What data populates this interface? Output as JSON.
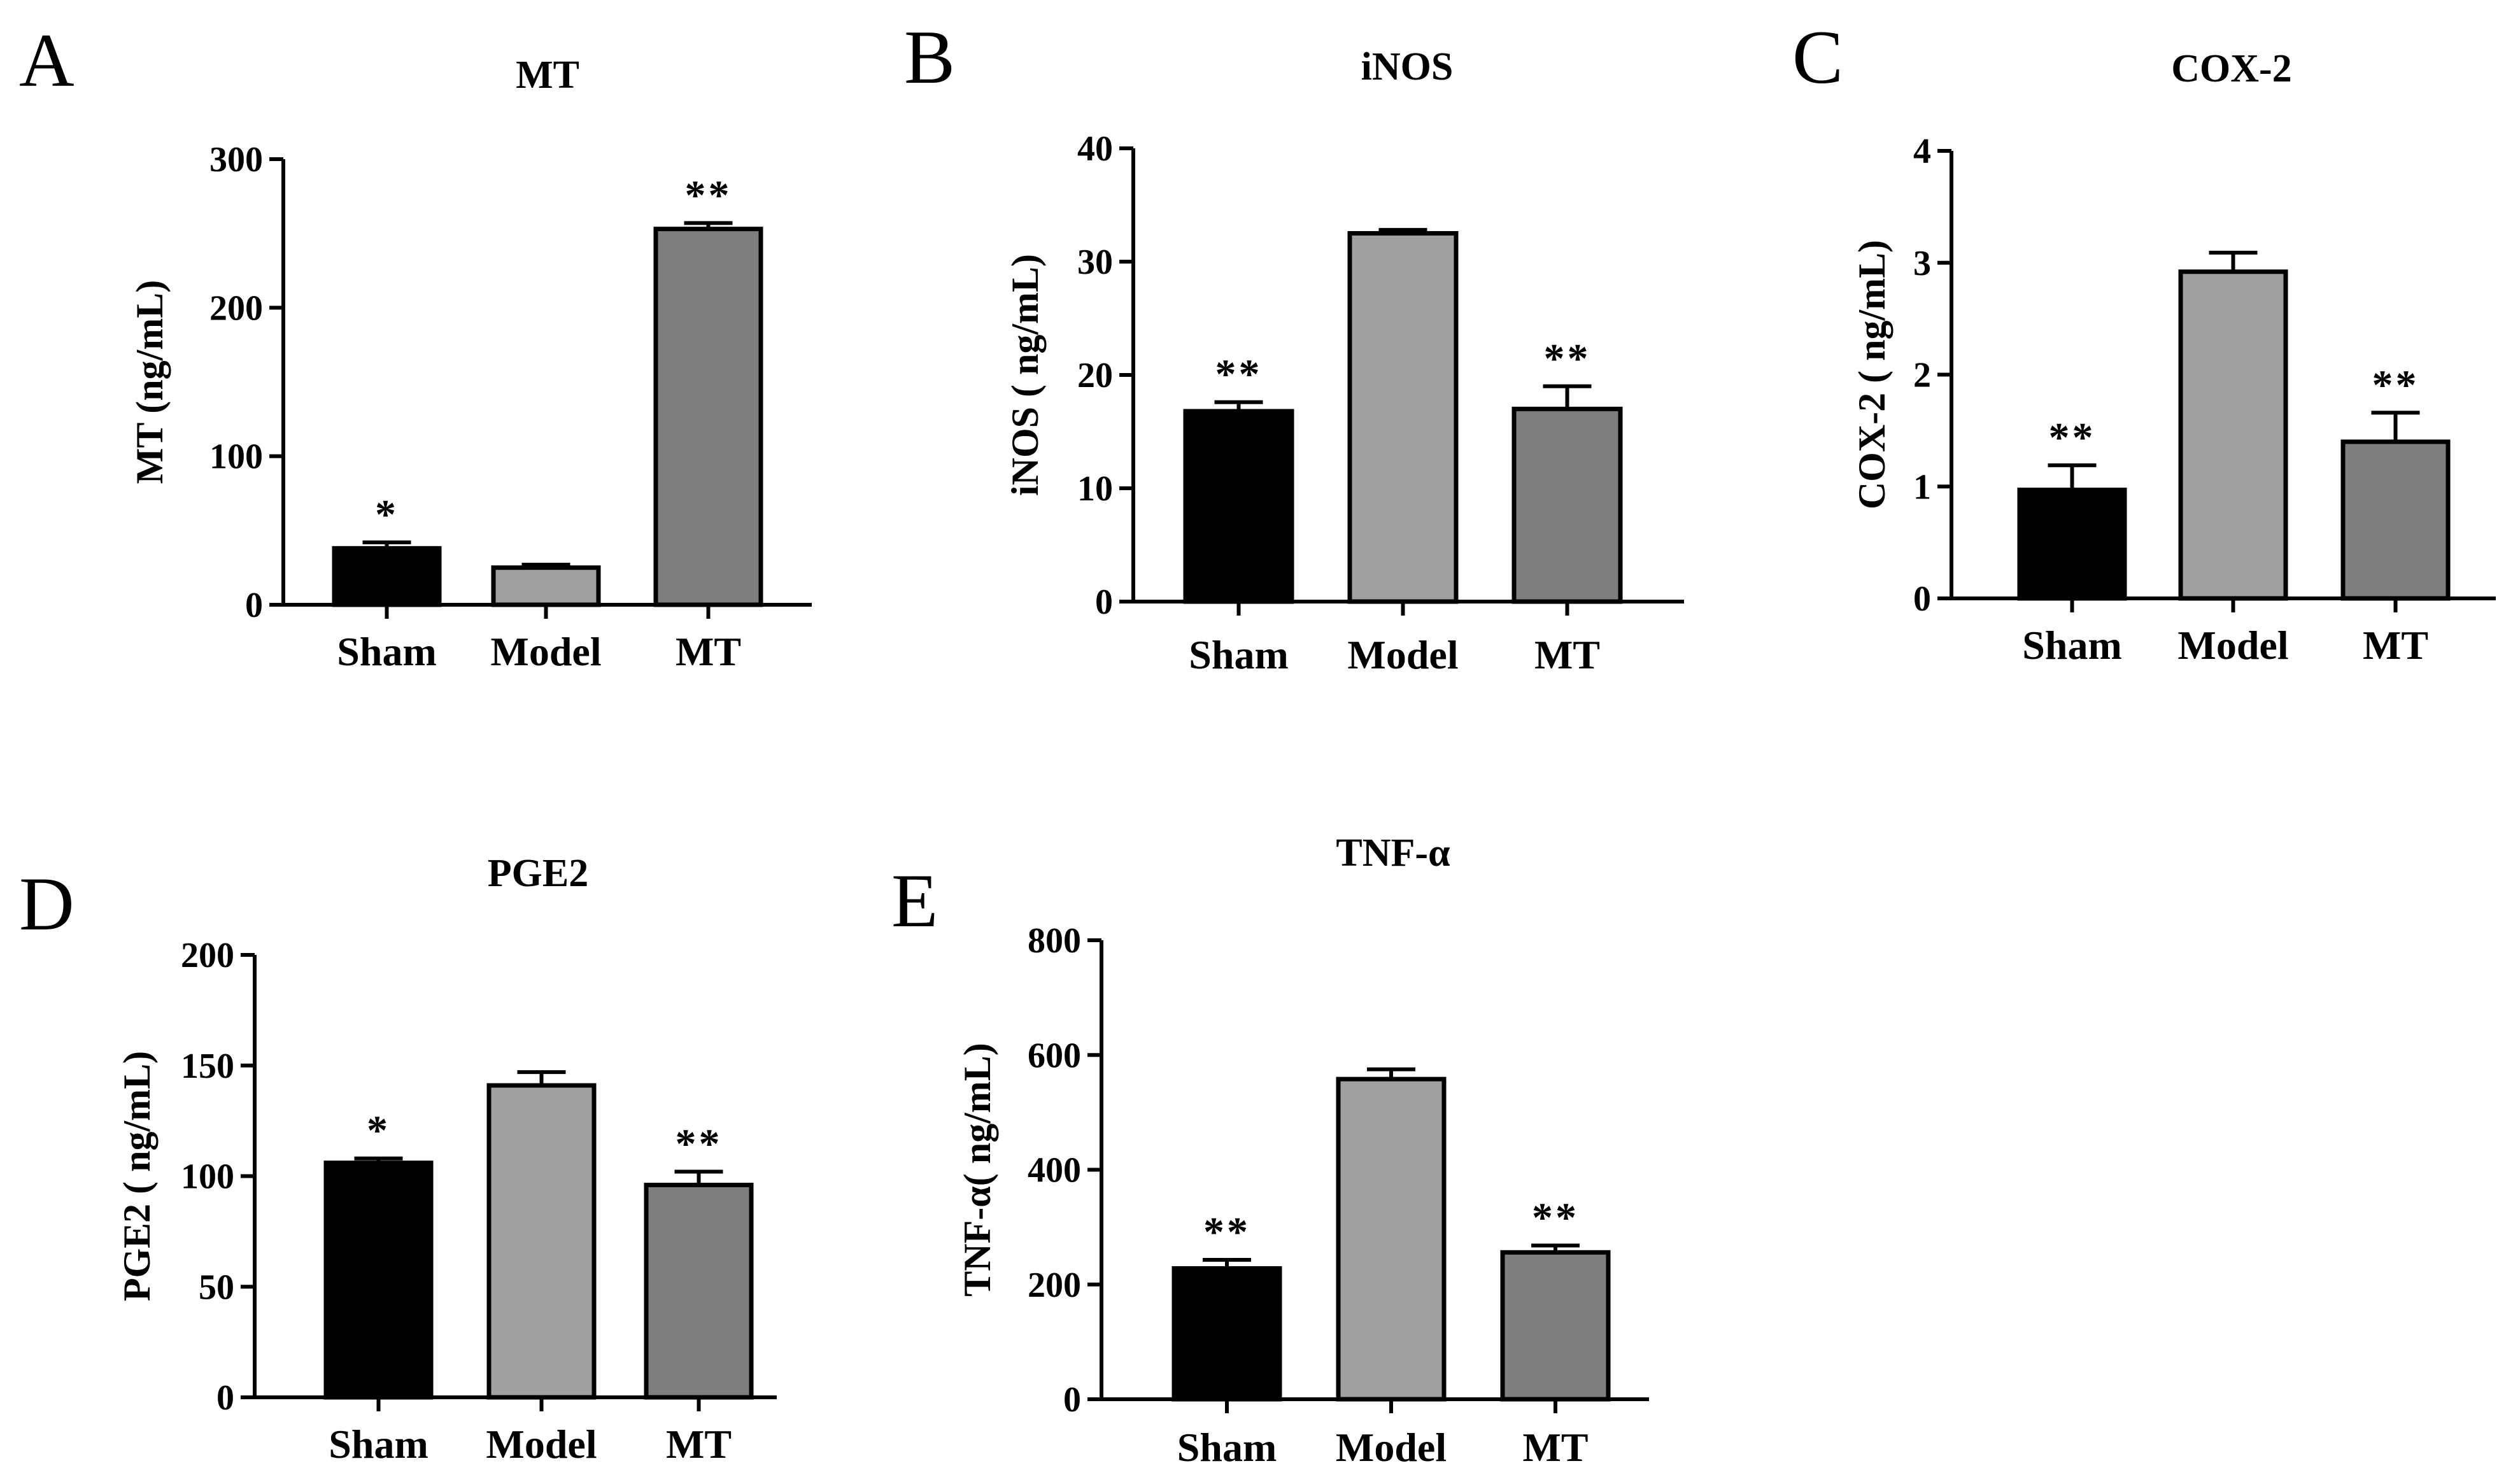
{
  "colors": {
    "Sham": "#000000",
    "Model": "#a0a0a0",
    "MT": "#7e7e7e",
    "axis": "#000000"
  },
  "chart_data": [
    {
      "panel": "A",
      "type": "bar",
      "title": "MT",
      "ylabel": "MT (ng/mL)",
      "categories": [
        "Sham",
        "Model",
        "MT"
      ],
      "values": [
        38,
        25,
        253
      ],
      "errors": [
        4,
        2,
        4
      ],
      "significance": [
        "*",
        "",
        "**"
      ],
      "ylim": [
        0,
        300
      ],
      "yticks": [
        0,
        100,
        200,
        300
      ]
    },
    {
      "panel": "B",
      "type": "bar",
      "title": "iNOS",
      "ylabel": "iNOS ( ng/mL)",
      "categories": [
        "Sham",
        "Model",
        "MT"
      ],
      "values": [
        16.8,
        32.5,
        17.0
      ],
      "errors": [
        0.8,
        0.3,
        2.0
      ],
      "significance": [
        "**",
        "",
        "**"
      ],
      "ylim": [
        0,
        40
      ],
      "yticks": [
        0,
        10,
        20,
        30,
        40
      ]
    },
    {
      "panel": "C",
      "type": "bar",
      "title": "COX-2",
      "ylabel": "COX-2 ( ng/mL)",
      "categories": [
        "Sham",
        "Model",
        "MT"
      ],
      "values": [
        0.97,
        2.92,
        1.4
      ],
      "errors": [
        0.22,
        0.17,
        0.26
      ],
      "significance": [
        "**",
        "",
        "**"
      ],
      "ylim": [
        0,
        4
      ],
      "yticks": [
        0,
        1,
        2,
        3,
        4
      ]
    },
    {
      "panel": "D",
      "type": "bar",
      "title": "PGE2",
      "ylabel": "PGE2 ( ng/mL)",
      "categories": [
        "Sham",
        "Model",
        "MT"
      ],
      "values": [
        106,
        141,
        96
      ],
      "errors": [
        2,
        6,
        6
      ],
      "significance": [
        "*",
        "",
        "**"
      ],
      "ylim": [
        0,
        200
      ],
      "yticks": [
        0,
        50,
        100,
        150,
        200
      ]
    },
    {
      "panel": "E",
      "type": "bar",
      "title": "TNF-α",
      "ylabel": "TNF-α( ng/mL)",
      "categories": [
        "Sham",
        "Model",
        "MT"
      ],
      "values": [
        228,
        558,
        256
      ],
      "errors": [
        15,
        17,
        12
      ],
      "significance": [
        "**",
        "",
        "**"
      ],
      "ylim": [
        0,
        800
      ],
      "yticks": [
        0,
        200,
        400,
        600,
        800
      ]
    }
  ]
}
